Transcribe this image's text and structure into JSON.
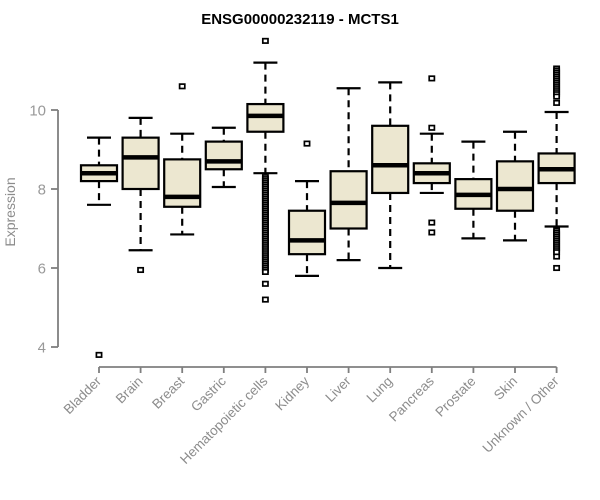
{
  "window": {
    "background": "#ffffff"
  },
  "chart_data": {
    "type": "boxplot",
    "title": "ENSG00000232119 - MCTS1",
    "xlabel": "",
    "ylabel": "Expression",
    "yaxis_range": [
      4,
      10
    ],
    "yticks": [
      4,
      6,
      8,
      10
    ],
    "grid": false,
    "legend": null,
    "categories": [
      "Bladder",
      "Brain",
      "Breast",
      "Gastric",
      "Hematopoietic cells",
      "Kidney",
      "Liver",
      "Lung",
      "Pancreas",
      "Prostate",
      "Skin",
      "Unknown / Other"
    ],
    "series": [
      {
        "category": "Bladder",
        "whisker_low": 7.6,
        "q1": 8.2,
        "median": 8.4,
        "q3": 8.6,
        "whisker_high": 9.3,
        "outliers": [
          3.8
        ]
      },
      {
        "category": "Brain",
        "whisker_low": 6.45,
        "q1": 8.0,
        "median": 8.8,
        "q3": 9.3,
        "whisker_high": 9.8,
        "outliers": [
          5.95
        ]
      },
      {
        "category": "Breast",
        "whisker_low": 6.85,
        "q1": 7.55,
        "median": 7.8,
        "q3": 8.75,
        "whisker_high": 9.4,
        "outliers": [
          10.6
        ]
      },
      {
        "category": "Gastric",
        "whisker_low": 8.05,
        "q1": 8.5,
        "median": 8.7,
        "q3": 9.2,
        "whisker_high": 9.55,
        "outliers": []
      },
      {
        "category": "Hematopoietic cells",
        "whisker_low": 8.4,
        "q1": 9.45,
        "median": 9.85,
        "q3": 10.15,
        "whisker_high": 11.2,
        "outliers": [
          11.75,
          8.3,
          8.25,
          8.2,
          8.15,
          8.1,
          8.05,
          8.0,
          7.95,
          7.9,
          7.85,
          7.8,
          7.75,
          7.7,
          7.65,
          7.6,
          7.55,
          7.5,
          7.45,
          7.4,
          7.35,
          7.3,
          7.25,
          7.2,
          7.15,
          7.1,
          7.05,
          7.0,
          6.95,
          6.9,
          6.85,
          6.8,
          6.75,
          6.7,
          6.65,
          6.6,
          6.55,
          6.5,
          6.45,
          6.4,
          6.35,
          6.3,
          6.25,
          6.2,
          6.15,
          6.1,
          6.05,
          6.0,
          5.95,
          5.9,
          5.6,
          5.2
        ]
      },
      {
        "category": "Kidney",
        "whisker_low": 5.8,
        "q1": 6.35,
        "median": 6.7,
        "q3": 7.45,
        "whisker_high": 8.2,
        "outliers": [
          9.15
        ]
      },
      {
        "category": "Liver",
        "whisker_low": 6.2,
        "q1": 7.0,
        "median": 7.65,
        "q3": 8.45,
        "whisker_high": 10.55,
        "outliers": []
      },
      {
        "category": "Lung",
        "whisker_low": 6.0,
        "q1": 7.9,
        "median": 8.6,
        "q3": 9.6,
        "whisker_high": 10.7,
        "outliers": []
      },
      {
        "category": "Pancreas",
        "whisker_low": 7.9,
        "q1": 8.15,
        "median": 8.4,
        "q3": 8.65,
        "whisker_high": 9.4,
        "outliers": [
          10.8,
          9.55,
          7.15,
          6.9
        ]
      },
      {
        "category": "Prostate",
        "whisker_low": 6.75,
        "q1": 7.5,
        "median": 7.85,
        "q3": 8.25,
        "whisker_high": 9.2,
        "outliers": []
      },
      {
        "category": "Skin",
        "whisker_low": 6.7,
        "q1": 7.45,
        "median": 8.0,
        "q3": 8.7,
        "whisker_high": 9.45,
        "outliers": []
      },
      {
        "category": "Unknown / Other",
        "whisker_low": 7.05,
        "q1": 8.15,
        "median": 8.5,
        "q3": 8.9,
        "whisker_high": 9.95,
        "outliers": [
          11.05,
          11.0,
          10.95,
          10.9,
          10.85,
          10.8,
          10.75,
          10.7,
          10.65,
          10.6,
          10.55,
          10.5,
          10.45,
          10.4,
          10.34,
          10.18,
          6.95,
          6.9,
          6.85,
          6.8,
          6.75,
          6.7,
          6.65,
          6.6,
          6.55,
          6.5,
          6.45,
          6.4,
          6.29,
          6.0
        ]
      }
    ],
    "colors": {
      "box_fill": "#ece7d0",
      "box_border": "#000000",
      "median": "#000000",
      "whisker": "#000000",
      "outlier_fill": "#ffffff",
      "axis": "#7f7f7f",
      "tick_label": "#999999",
      "category_label": "#8c8c8c",
      "title": "#000000"
    }
  }
}
